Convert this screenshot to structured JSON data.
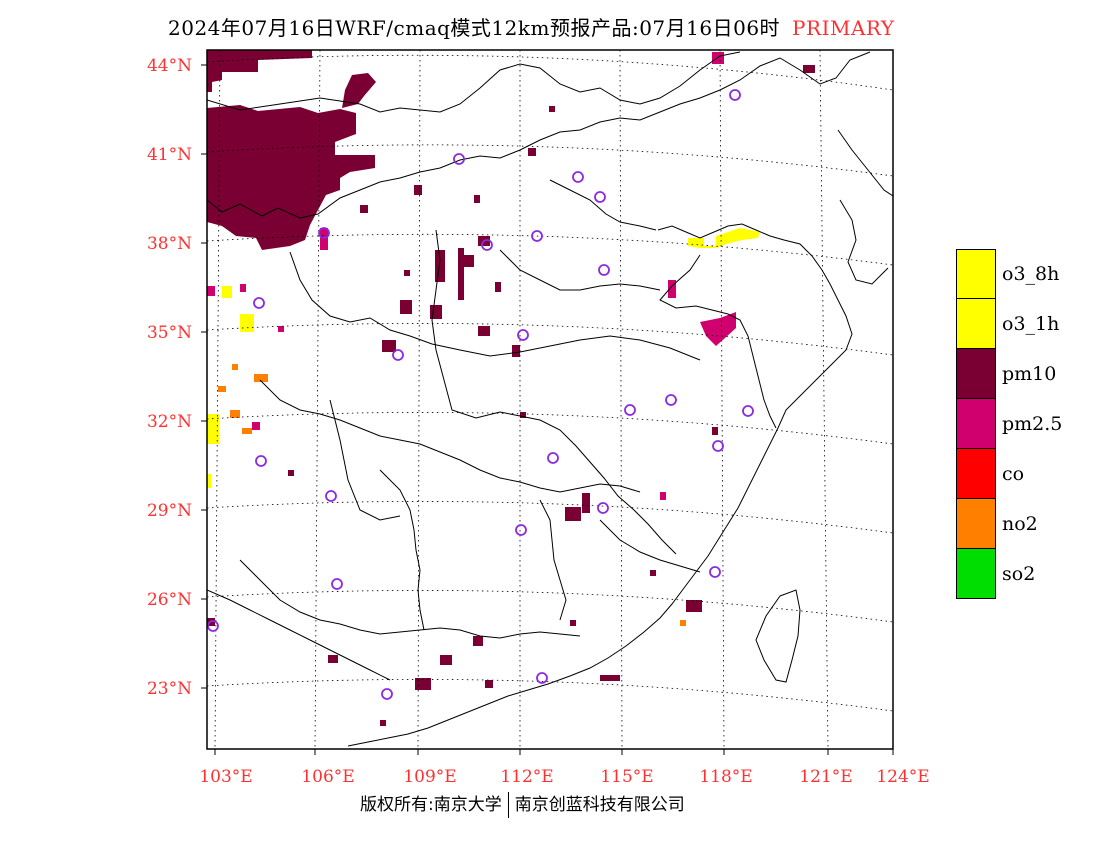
{
  "header": {
    "title": "2024年07月16日WRF/cmaq模式12km预报产品:07月16日06时",
    "status": "PRIMARY",
    "status_color": "#ff3030"
  },
  "map": {
    "lat_labels": [
      "44°N",
      "41°N",
      "38°N",
      "35°N",
      "32°N",
      "29°N",
      "26°N",
      "23°N"
    ],
    "lon_labels": [
      "103°E",
      "106°E",
      "109°E",
      "112°E",
      "115°E",
      "118°E",
      "121°E",
      "124°E"
    ],
    "label_color": "#ff3030",
    "fill_colors": {
      "pm10": "#7a0033",
      "pm25": "#d0006f",
      "o3": "#ffff00",
      "no2": "#ff7f00",
      "co": "#ff0000",
      "so2": "#00dd00",
      "station_marker": "#8a2be2"
    }
  },
  "legend": {
    "items": [
      {
        "label": "o3_8h",
        "color": "#ffff00"
      },
      {
        "label": "o3_1h",
        "color": "#ffff00"
      },
      {
        "label": "pm10",
        "color": "#7a0033"
      },
      {
        "label": "pm2.5",
        "color": "#d0006f"
      },
      {
        "label": "co",
        "color": "#ff0000"
      },
      {
        "label": "no2",
        "color": "#ff7f00"
      },
      {
        "label": "so2",
        "color": "#00dd00"
      }
    ]
  },
  "footer": {
    "left": "版权所有:南京大学",
    "right": "南京创蓝科技有限公司"
  }
}
